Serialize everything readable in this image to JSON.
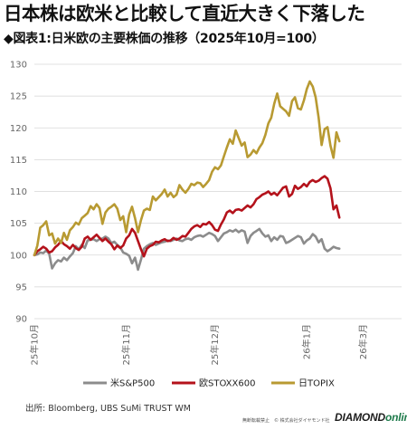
{
  "headline": "日本株は欧米と比較して直近大きく下落した",
  "subtitle": "◆図表1:日米欧の主要株価の推移（2025年10月=100）",
  "source": "出所: Bloomberg, UBS SuMi TRUST WM",
  "notice": "無断転載禁止　© 株式会社ダイヤモンド社",
  "logo": {
    "part1": "DIAMOND",
    "part2": "online"
  },
  "chart_data": {
    "type": "line",
    "ylim": [
      90,
      130
    ],
    "yticks": [
      90,
      95,
      100,
      105,
      110,
      115,
      120,
      125,
      130
    ],
    "xlim": [
      0,
      124
    ],
    "xticks": [
      {
        "x": 0,
        "label": "25年10月"
      },
      {
        "x": 31,
        "label": "25年11月"
      },
      {
        "x": 61,
        "label": "25年12月"
      },
      {
        "x": 92,
        "label": "26年1月"
      },
      {
        "x": 123,
        "label": "26年2月"
      }
    ],
    "xticks_late": {
      "label": "26年3月"
    },
    "grid": "horizontal",
    "legend_position": "bottom",
    "colors": {
      "sp500": "#8c8c8c",
      "stoxx": "#b4121b",
      "topix": "#b89a32"
    },
    "series": [
      {
        "name": "米S&P500",
        "color": "#8c8c8c",
        "values": [
          100,
          100.1,
          100.4,
          100.3,
          100.7,
          100.2,
          97.9,
          98.7,
          99.2,
          99.0,
          99.6,
          99.2,
          99.8,
          100.3,
          101.4,
          100.9,
          101.6,
          101.1,
          102.3,
          102.4,
          102.5,
          102.2,
          102.5,
          102.6,
          102.9,
          102.6,
          101.9,
          102.1,
          101.6,
          101.2,
          100.4,
          100.2,
          99.9,
          98.7,
          99.6,
          97.7,
          99.3,
          101.0,
          101.4,
          101.7,
          101.9,
          101.6,
          101.8,
          102.0,
          102.1,
          102.3,
          102.2,
          102.4,
          102.6,
          102.3,
          102.2,
          102.5,
          102.6,
          102.4,
          102.8,
          103.0,
          103.1,
          102.9,
          103.2,
          103.5,
          103.3,
          103.0,
          102.2,
          102.8,
          103.4,
          103.6,
          103.9,
          103.7,
          104.0,
          103.6,
          103.9,
          103.7,
          101.9,
          103.0,
          103.5,
          103.8,
          104.1,
          103.4,
          102.9,
          103.1,
          102.2,
          102.8,
          102.4,
          103.0,
          102.9,
          101.9,
          102.1,
          102.4,
          102.7,
          103.0,
          102.8,
          101.8,
          102.3,
          102.6,
          103.3,
          102.9,
          102.0,
          102.5,
          101.0,
          100.6,
          100.9,
          101.3,
          101.1,
          101.0
        ]
      },
      {
        "name": "欧STOXX600",
        "color": "#b4121b",
        "values": [
          100,
          100.6,
          100.9,
          101.3,
          101.0,
          100.4,
          100.6,
          101.2,
          101.6,
          102.2,
          101.7,
          101.4,
          101.0,
          101.6,
          101.1,
          100.8,
          101.3,
          102.6,
          102.9,
          102.4,
          102.8,
          103.2,
          102.7,
          102.2,
          102.6,
          102.1,
          101.7,
          100.9,
          101.5,
          101.1,
          101.5,
          102.6,
          103.1,
          104.1,
          103.5,
          102.2,
          100.9,
          99.8,
          101.0,
          101.4,
          101.6,
          102.1,
          102.0,
          102.3,
          102.5,
          102.2,
          102.3,
          102.7,
          102.4,
          102.6,
          103.0,
          102.9,
          103.5,
          104.1,
          104.5,
          104.7,
          104.4,
          104.9,
          104.8,
          105.2,
          104.7,
          104.0,
          103.8,
          104.8,
          105.6,
          106.7,
          107.0,
          106.6,
          107.1,
          107.2,
          107.0,
          107.4,
          107.8,
          107.5,
          108.0,
          108.8,
          109.1,
          109.5,
          109.7,
          110.0,
          109.5,
          109.8,
          109.4,
          110.0,
          110.6,
          110.8,
          109.2,
          109.6,
          110.9,
          110.4,
          110.7,
          111.2,
          110.8,
          111.5,
          111.8,
          111.5,
          111.7,
          112.1,
          112.4,
          112.0,
          110.5,
          107.2,
          107.8,
          105.9
        ]
      },
      {
        "name": "日TOPIX",
        "color": "#b89a32",
        "values": [
          100,
          101.5,
          104.3,
          104.7,
          105.3,
          103.1,
          103.4,
          101.8,
          102.6,
          101.9,
          103.5,
          102.4,
          103.9,
          104.4,
          105.1,
          104.8,
          105.8,
          106.2,
          106.6,
          107.7,
          107.2,
          108.0,
          107.4,
          104.9,
          106.7,
          107.3,
          107.6,
          108.0,
          107.3,
          105.5,
          106.1,
          103.6,
          106.4,
          107.6,
          105.8,
          103.6,
          105.5,
          107.0,
          107.3,
          107.1,
          109.2,
          108.6,
          109.1,
          109.6,
          110.3,
          109.2,
          109.8,
          109.1,
          109.5,
          111.0,
          110.3,
          109.8,
          110.4,
          111.2,
          111.0,
          111.4,
          111.3,
          110.7,
          111.2,
          111.8,
          113.1,
          113.8,
          113.5,
          114.1,
          115.5,
          116.9,
          118.2,
          117.5,
          119.6,
          118.4,
          117.2,
          117.7,
          115.4,
          115.8,
          116.5,
          116.0,
          116.9,
          117.6,
          118.9,
          120.7,
          121.6,
          123.8,
          125.4,
          123.4,
          123.0,
          122.6,
          121.9,
          124.2,
          124.8,
          123.1,
          122.9,
          124.3,
          126.1,
          127.3,
          126.5,
          124.8,
          121.6,
          117.3,
          119.8,
          120.1,
          117.2,
          115.3,
          119.3,
          117.9
        ]
      }
    ]
  }
}
